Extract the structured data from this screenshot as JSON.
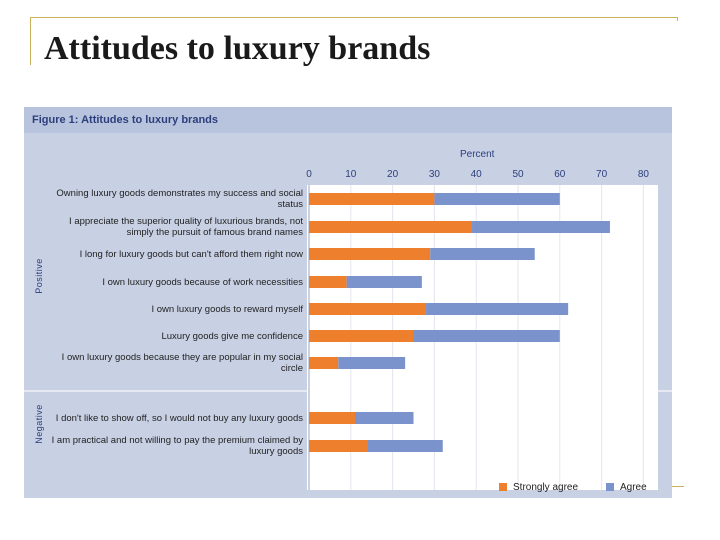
{
  "slide": {
    "title": "Attitudes to luxury brands"
  },
  "colors": {
    "strongly_agree": "#ee7f2d",
    "agree": "#7b93cc",
    "accent_line": "#c9b25a",
    "figure_bg": "#c8d0e4",
    "title_blue": "#2c3f7c"
  },
  "chart_data": {
    "type": "bar",
    "orientation": "horizontal",
    "stacked": true,
    "title": "Figure 1: Attitudes to luxury brands",
    "xlabel": "Percent",
    "xlim": [
      0,
      80
    ],
    "xticks": [
      "0",
      "10",
      "20",
      "30",
      "40",
      "50",
      "60",
      "70",
      "80"
    ],
    "sections": [
      "Positive",
      "Negative"
    ],
    "categories": [
      "Owning luxury goods demonstrates my success and social status",
      "I appreciate the superior quality of luxurious brands, not simply the pursuit of famous brand names",
      "I long for luxury goods but can't afford them right now",
      "I own luxury goods because of work necessities",
      "I own luxury goods to reward myself",
      "Luxury goods give me confidence",
      "I own luxury goods because they are popular in my social circle",
      "I don't like to show off, so I would not buy any luxury goods",
      "I am practical and not willing to pay the premium claimed by luxury goods"
    ],
    "category_section": [
      "Positive",
      "Positive",
      "Positive",
      "Positive",
      "Positive",
      "Positive",
      "Positive",
      "Negative",
      "Negative"
    ],
    "series": [
      {
        "name": "Strongly agree",
        "values": [
          30,
          39,
          29,
          9,
          28,
          25,
          7,
          11,
          14
        ]
      },
      {
        "name": "Agree",
        "values": [
          30,
          33,
          25,
          18,
          34,
          35,
          16,
          14,
          18
        ]
      }
    ],
    "legend": "bottom-right"
  }
}
